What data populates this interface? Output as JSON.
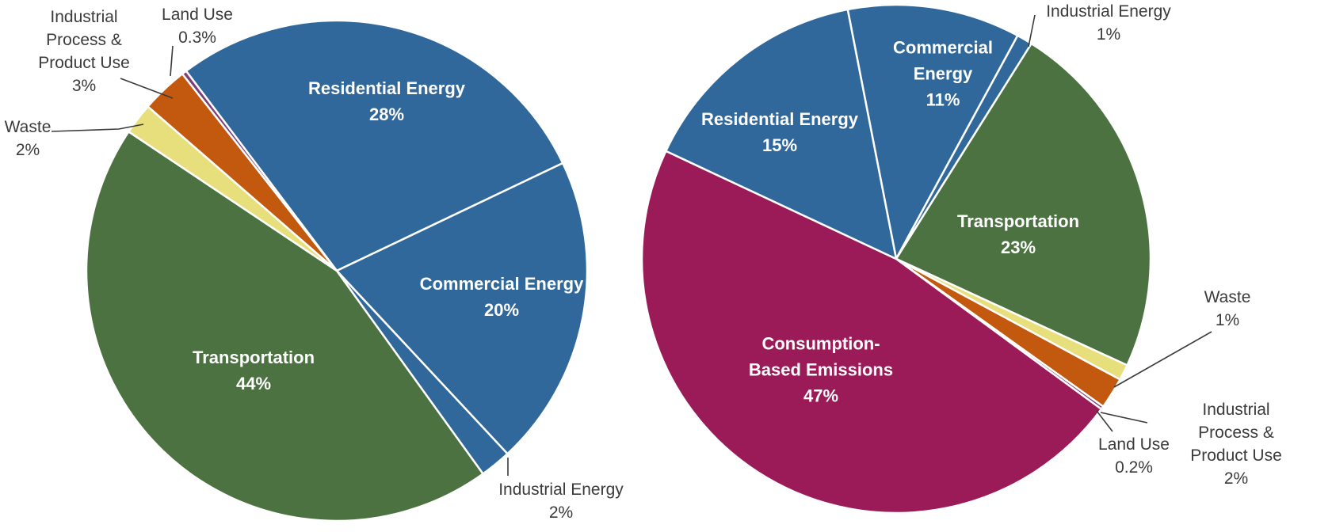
{
  "styles": {
    "background": "#FFFFFF",
    "slice_border": "#FFFFFF",
    "inside_label_color": "#FFFFFF",
    "outside_label_color": "#3B3B3B",
    "leader_line_color": "#3B3B3B",
    "blue": "#31689B",
    "green": "#4C7242",
    "maroon": "#9B1B59",
    "orange": "#C2590F",
    "yellow": "#E7DE7C",
    "purple": "#7D3C7A"
  },
  "chart_data": [
    {
      "type": "pie",
      "name": "left-pie",
      "start_angle_deg": -37,
      "legend": "none",
      "slices": [
        {
          "label": "Residential Energy",
          "value": 28,
          "pct": "28%",
          "color": "#31689B",
          "placement": "inside",
          "label_text": "Residential Energy\n28%"
        },
        {
          "label": "Commercial Energy",
          "value": 20,
          "pct": "20%",
          "color": "#31689B",
          "placement": "inside",
          "label_text": "Commercial Energy\n20%"
        },
        {
          "label": "Industrial Energy",
          "value": 2,
          "pct": "2%",
          "color": "#31689B",
          "placement": "outside",
          "label_text": "Industrial Energy\n2%"
        },
        {
          "label": "Transportation",
          "value": 44,
          "pct": "44%",
          "color": "#4C7242",
          "placement": "inside",
          "label_text": "Transportation\n44%"
        },
        {
          "label": "Waste",
          "value": 2,
          "pct": "2%",
          "color": "#E7DE7C",
          "placement": "outside",
          "label_text": "Waste\n2%"
        },
        {
          "label": "Industrial Process & Product Use",
          "value": 3,
          "pct": "3%",
          "color": "#C2590F",
          "placement": "outside",
          "label_text": "Industrial\nProcess &\nProduct Use\n3%"
        },
        {
          "label": "Land Use",
          "value": 0.3,
          "pct": "0.3%",
          "color": "#7D3C7A",
          "placement": "outside",
          "label_text": "Land Use\n0.3%"
        }
      ]
    },
    {
      "type": "pie",
      "name": "right-pie",
      "start_angle_deg": -11,
      "legend": "none",
      "slices": [
        {
          "label": "Commercial Energy",
          "value": 11,
          "pct": "11%",
          "color": "#31689B",
          "placement": "inside",
          "label_text": "Commercial\nEnergy\n11%"
        },
        {
          "label": "Industrial Energy",
          "value": 1,
          "pct": "1%",
          "color": "#31689B",
          "placement": "outside",
          "label_text": "Industrial Energy\n1%"
        },
        {
          "label": "Transportation",
          "value": 23,
          "pct": "23%",
          "color": "#4C7242",
          "placement": "inside",
          "label_text": "Transportation\n23%"
        },
        {
          "label": "Waste",
          "value": 1,
          "pct": "1%",
          "color": "#E7DE7C",
          "placement": "outside",
          "label_text": "Waste\n1%"
        },
        {
          "label": "Industrial Process & Product Use",
          "value": 2,
          "pct": "2%",
          "color": "#C2590F",
          "placement": "outside",
          "label_text": "Industrial Process &\nProduct Use\n2%"
        },
        {
          "label": "Land Use",
          "value": 0.2,
          "pct": "0.2%",
          "color": "#7D3C7A",
          "placement": "outside",
          "label_text": "Land Use\n0.2%"
        },
        {
          "label": "Consumption-Based Emissions",
          "value": 47,
          "pct": "47%",
          "color": "#9B1B59",
          "placement": "inside",
          "label_text": "Consumption-\nBased Emissions\n47%"
        },
        {
          "label": "Residential Energy",
          "value": 15,
          "pct": "15%",
          "color": "#31689B",
          "placement": "inside",
          "label_text": "Residential Energy\n15%"
        }
      ]
    }
  ]
}
